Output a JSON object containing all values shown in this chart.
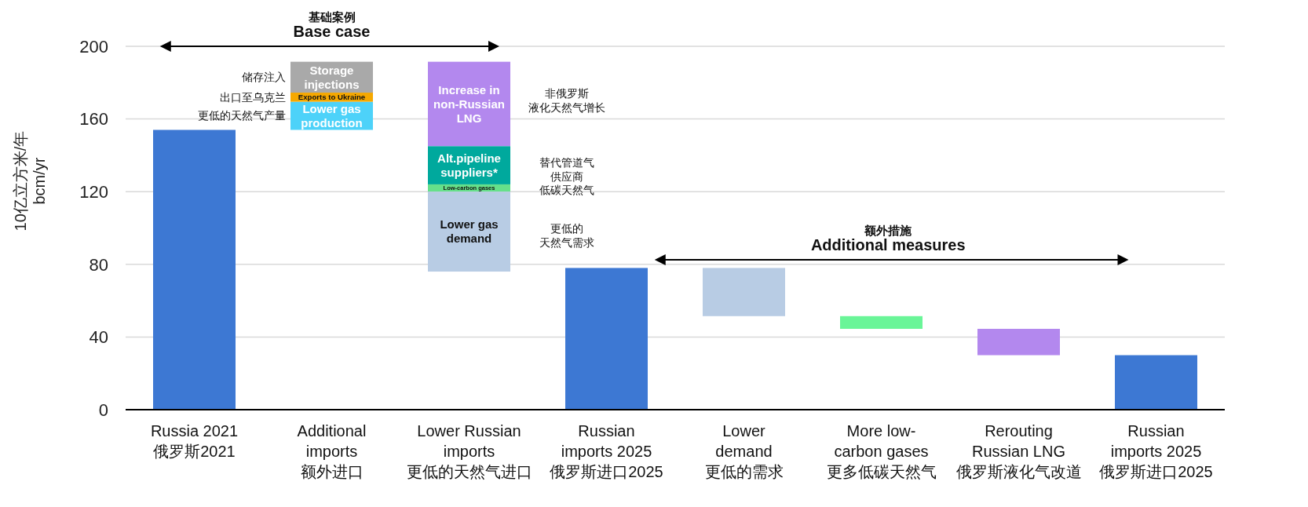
{
  "chart_data": {
    "type": "bar",
    "ylabel": "10亿立方米/年\nbcm/yr",
    "categories": [
      "Russia 2021\n俄罗斯2021",
      "Additional\nimports\n额外进口",
      "Lower Russian\nimports\n更低的天然气进口",
      "Russian\nimports 2025\n俄罗斯进口2025",
      "Lower\ndemand\n更低的需求",
      "More low-\ncarbon gases\n更多低碳天然气",
      "Rerouting\nRussian LNG\n俄罗斯液化气改道",
      "Russian\nimports 2025\n俄罗斯进口2025"
    ],
    "ylim": [
      0,
      200
    ],
    "yticks": [
      0,
      40,
      80,
      120,
      160,
      200
    ],
    "grid": "y",
    "series": [
      {
        "color": "#3d78d3",
        "values": [
          154,
          null,
          null,
          78,
          null,
          null,
          null,
          30
        ]
      },
      {
        "name": "Lower gas\nproduction",
        "color": "#4dd2f9",
        "values": [
          null,
          15.5,
          null,
          null,
          null,
          null,
          null,
          null
        ],
        "base": [
          null,
          154,
          null,
          null,
          null,
          null,
          null,
          null
        ]
      },
      {
        "name": "Exports to Ukraine",
        "color": "#f5a800",
        "values": [
          null,
          5,
          null,
          null,
          null,
          null,
          null,
          null
        ],
        "base": [
          null,
          169.5,
          null,
          null,
          null,
          null,
          null,
          null
        ]
      },
      {
        "name": "Storage\ninjections",
        "color": "#a9a9a9",
        "values": [
          null,
          17,
          null,
          null,
          null,
          null,
          null,
          null
        ],
        "base": [
          null,
          174.5,
          null,
          null,
          null,
          null,
          null,
          null
        ]
      },
      {
        "name": "Increase in\nnon-Russian\nLNG",
        "color": "#b388ee",
        "values": [
          null,
          null,
          46.5,
          null,
          null,
          null,
          null,
          null
        ],
        "base": [
          null,
          null,
          145,
          null,
          null,
          null,
          null,
          null
        ]
      },
      {
        "name": "Alt.pipeline\nsuppliers*",
        "color": "#00a99d",
        "values": [
          null,
          null,
          21,
          null,
          null,
          null,
          null,
          null
        ],
        "base": [
          null,
          null,
          124,
          null,
          null,
          null,
          null,
          null
        ]
      },
      {
        "name": "Low-carbon gases",
        "color": "#66e08a",
        "values": [
          null,
          null,
          4,
          null,
          null,
          null,
          null,
          null
        ],
        "base": [
          null,
          null,
          120,
          null,
          null,
          null,
          null,
          null
        ]
      },
      {
        "name": "Lower gas\ndemand",
        "color": "#b8cce4",
        "values": [
          null,
          null,
          44,
          null,
          null,
          null,
          null,
          null
        ],
        "base": [
          null,
          null,
          76,
          null,
          null,
          null,
          null,
          null
        ]
      },
      {
        "colors": [
          null,
          null,
          null,
          null,
          "#b8cce4",
          "#6af598",
          "#b388ee",
          null
        ],
        "values": [
          null,
          null,
          null,
          null,
          26.5,
          7,
          14.5,
          null
        ],
        "base": [
          null,
          null,
          null,
          null,
          51.5,
          44.5,
          30,
          null
        ]
      }
    ],
    "annotations": [
      "基础案例\nBase case",
      "额外措施\nAdditional measures",
      "储存注入",
      "出口至乌克兰",
      "更低的天然气产量",
      "非俄罗斯液化天然气增长",
      "替代管道气供应商",
      "低碳天然气",
      "更低的天然气需求"
    ]
  }
}
